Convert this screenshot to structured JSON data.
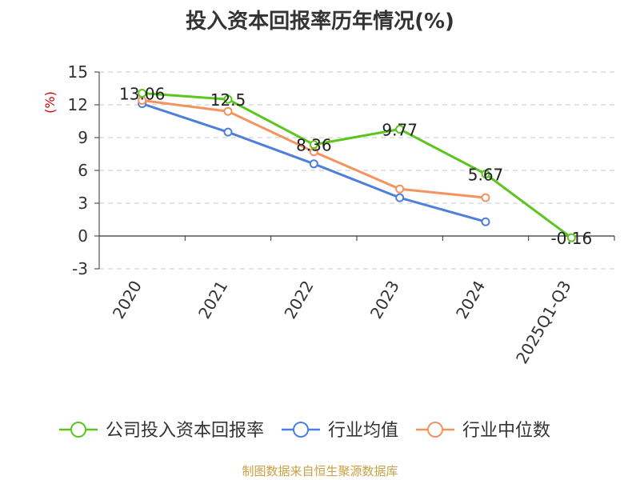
{
  "chart_data": {
    "type": "line",
    "title": "投入资本回报率历年情况(%)",
    "ylabel": "(%)",
    "categories": [
      "2020",
      "2021",
      "2022",
      "2023",
      "2024",
      "2025Q1-Q3"
    ],
    "ylim": [
      -3,
      15
    ],
    "yticks": [
      -3,
      0,
      3,
      6,
      9,
      12,
      15
    ],
    "grid": true,
    "legend_position": "bottom",
    "series": [
      {
        "name": "公司投入资本回报率",
        "color": "#5cc51f",
        "values": [
          13.06,
          12.5,
          8.36,
          9.77,
          5.67,
          -0.16
        ],
        "labels": [
          "13.06",
          "12.5",
          "8.36",
          "9.77",
          "5.67",
          "-0.16"
        ]
      },
      {
        "name": "行业均值",
        "color": "#4f7fdd",
        "values": [
          12.1,
          9.5,
          6.6,
          3.5,
          1.3,
          null
        ]
      },
      {
        "name": "行业中位数",
        "color": "#f5925e",
        "values": [
          12.4,
          11.4,
          7.7,
          4.3,
          3.5,
          null
        ]
      }
    ]
  },
  "source": "制图数据来自恒生聚源数据库"
}
